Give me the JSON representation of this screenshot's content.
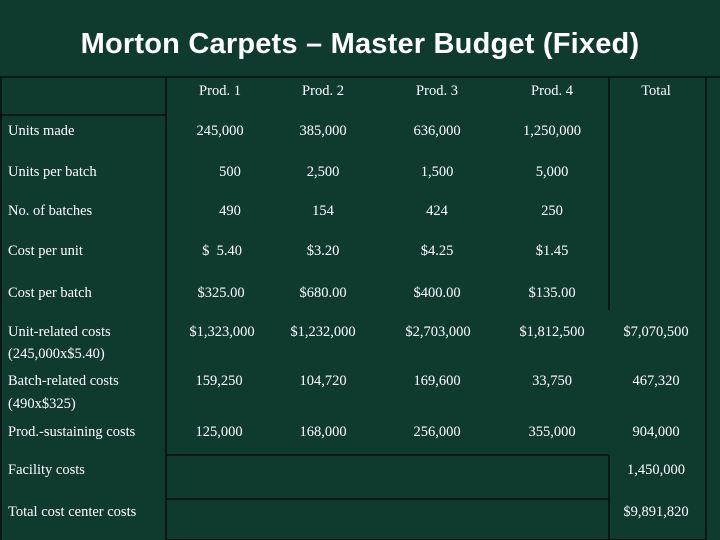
{
  "title": "Morton Carpets – Master Budget (Fixed)",
  "columns": [
    "Prod. 1",
    "Prod. 2",
    "Prod. 3",
    "Prod. 4",
    "Total"
  ],
  "rows": [
    {
      "label": "Units made",
      "values": [
        "245,000",
        "385,000",
        "636,000",
        "1,250,000",
        ""
      ]
    },
    {
      "label": "Units per batch",
      "values": [
        "500",
        "2,500",
        "1,500",
        "5,000",
        ""
      ]
    },
    {
      "label": "No. of batches",
      "values": [
        "490",
        "154",
        "424",
        "250",
        ""
      ]
    },
    {
      "label": "Cost per unit",
      "values": [
        "$  5.40",
        "$3.20",
        "$4.25",
        "$1.45",
        ""
      ]
    },
    {
      "label": "Cost per batch",
      "values": [
        "$325.00",
        "$680.00",
        "$400.00",
        "$135.00",
        ""
      ]
    },
    {
      "label": "Unit-related costs",
      "sublabel": "(245,000x$5.40)",
      "values": [
        "$1,323,000",
        "$1,232,000",
        "$2,703,000",
        "$1,812,500",
        "$7,070,500"
      ]
    },
    {
      "label": "Batch-related costs",
      "sublabel": "(490x$325)",
      "values": [
        "159,250",
        "104,720",
        "169,600",
        "33,750",
        "467,320"
      ]
    },
    {
      "label": "Prod.-sustaining costs",
      "values": [
        "125,000",
        "168,000",
        "256,000",
        "355,000",
        "904,000"
      ]
    },
    {
      "label": "Facility costs",
      "values": [
        "",
        "",
        "",
        "",
        "1,450,000"
      ]
    },
    {
      "label": "Total cost center costs",
      "values": [
        "",
        "",
        "",
        "",
        "$9,891,820"
      ]
    }
  ]
}
